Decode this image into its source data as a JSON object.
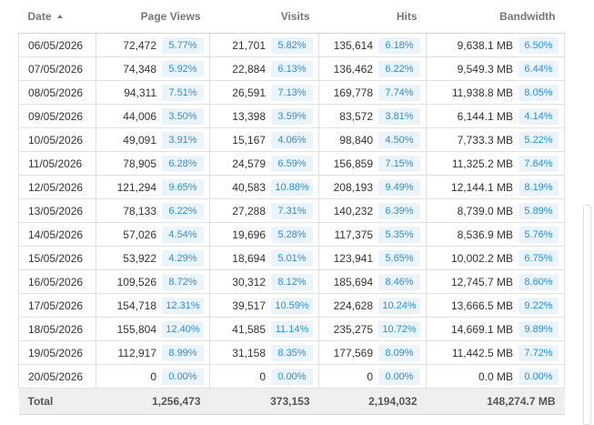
{
  "columns": {
    "date": "Date",
    "page_views": "Page Views",
    "visits": "Visits",
    "hits": "Hits",
    "bandwidth": "Bandwidth"
  },
  "rows": [
    {
      "date": "06/05/2026",
      "views": "72,472",
      "views_pct": "5.77%",
      "visits": "21,701",
      "visits_pct": "5.82%",
      "hits": "135,614",
      "hits_pct": "6.18%",
      "bw": "9,638.1 MB",
      "bw_pct": "6.50%"
    },
    {
      "date": "07/05/2026",
      "views": "74,348",
      "views_pct": "5.92%",
      "visits": "22,884",
      "visits_pct": "6.13%",
      "hits": "136,462",
      "hits_pct": "6.22%",
      "bw": "9,549.3 MB",
      "bw_pct": "6.44%"
    },
    {
      "date": "08/05/2026",
      "views": "94,311",
      "views_pct": "7.51%",
      "visits": "26,591",
      "visits_pct": "7.13%",
      "hits": "169,778",
      "hits_pct": "7.74%",
      "bw": "11,938.8 MB",
      "bw_pct": "8.05%"
    },
    {
      "date": "09/05/2026",
      "views": "44,006",
      "views_pct": "3.50%",
      "visits": "13,398",
      "visits_pct": "3.59%",
      "hits": "83,572",
      "hits_pct": "3.81%",
      "bw": "6,144.1 MB",
      "bw_pct": "4.14%"
    },
    {
      "date": "10/05/2026",
      "views": "49,091",
      "views_pct": "3.91%",
      "visits": "15,167",
      "visits_pct": "4.06%",
      "hits": "98,840",
      "hits_pct": "4.50%",
      "bw": "7,733.3 MB",
      "bw_pct": "5.22%"
    },
    {
      "date": "11/05/2026",
      "views": "78,905",
      "views_pct": "6.28%",
      "visits": "24,579",
      "visits_pct": "6.59%",
      "hits": "156,859",
      "hits_pct": "7.15%",
      "bw": "11,325.2 MB",
      "bw_pct": "7.64%"
    },
    {
      "date": "12/05/2026",
      "views": "121,294",
      "views_pct": "9.65%",
      "visits": "40,583",
      "visits_pct": "10.88%",
      "hits": "208,193",
      "hits_pct": "9.49%",
      "bw": "12,144.1 MB",
      "bw_pct": "8.19%"
    },
    {
      "date": "13/05/2026",
      "views": "78,133",
      "views_pct": "6.22%",
      "visits": "27,288",
      "visits_pct": "7.31%",
      "hits": "140,232",
      "hits_pct": "6.39%",
      "bw": "8,739.0 MB",
      "bw_pct": "5.89%"
    },
    {
      "date": "14/05/2026",
      "views": "57,026",
      "views_pct": "4.54%",
      "visits": "19,696",
      "visits_pct": "5.28%",
      "hits": "117,375",
      "hits_pct": "5.35%",
      "bw": "8,536.9 MB",
      "bw_pct": "5.76%"
    },
    {
      "date": "15/05/2026",
      "views": "53,922",
      "views_pct": "4.29%",
      "visits": "18,694",
      "visits_pct": "5.01%",
      "hits": "123,941",
      "hits_pct": "5.65%",
      "bw": "10,002.2 MB",
      "bw_pct": "6.75%"
    },
    {
      "date": "16/05/2026",
      "views": "109,526",
      "views_pct": "8.72%",
      "visits": "30,312",
      "visits_pct": "8.12%",
      "hits": "185,694",
      "hits_pct": "8.46%",
      "bw": "12,745.7 MB",
      "bw_pct": "8.60%"
    },
    {
      "date": "17/05/2026",
      "views": "154,718",
      "views_pct": "12.31%",
      "visits": "39,517",
      "visits_pct": "10.59%",
      "hits": "224,628",
      "hits_pct": "10.24%",
      "bw": "13,666.5 MB",
      "bw_pct": "9.22%"
    },
    {
      "date": "18/05/2026",
      "views": "155,804",
      "views_pct": "12.40%",
      "visits": "41,585",
      "visits_pct": "11.14%",
      "hits": "235,275",
      "hits_pct": "10.72%",
      "bw": "14,669.1 MB",
      "bw_pct": "9.89%"
    },
    {
      "date": "19/05/2026",
      "views": "112,917",
      "views_pct": "8.99%",
      "visits": "31,158",
      "visits_pct": "8.35%",
      "hits": "177,569",
      "hits_pct": "8.09%",
      "bw": "11,442.5 MB",
      "bw_pct": "7.72%"
    },
    {
      "date": "20/05/2026",
      "views": "0",
      "views_pct": "0.00%",
      "visits": "0",
      "visits_pct": "0.00%",
      "hits": "0",
      "hits_pct": "0.00%",
      "bw": "0.0 MB",
      "bw_pct": "0.00%"
    }
  ],
  "totals": {
    "label": "Total",
    "views": "1,256,473",
    "visits": "373,153",
    "hits": "2,194,032",
    "bw": "148,274.7 MB"
  },
  "colors": {
    "percent_text": "#2b8fd6",
    "percent_bg": "#ecf4fb",
    "total_bg": "#efefef"
  }
}
